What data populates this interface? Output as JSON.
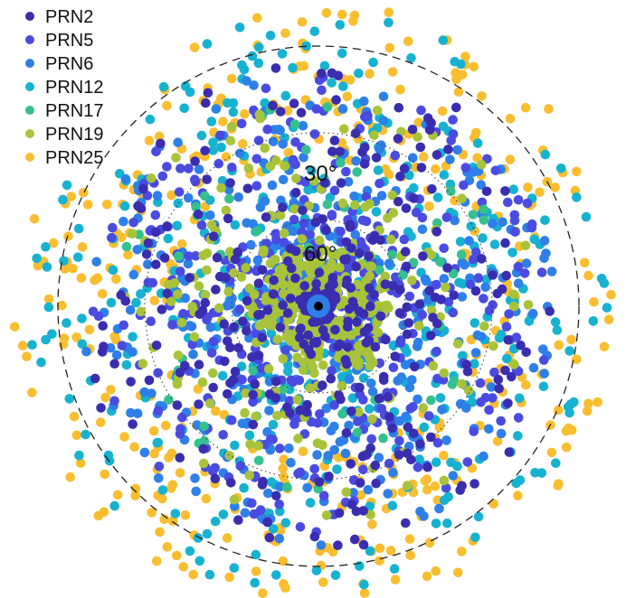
{
  "chart_data": {
    "type": "scatter",
    "projection": "polar-skyplot",
    "title": "",
    "xlabel": "",
    "ylabel": "",
    "elevation_rings": [
      {
        "elevation_deg": 0,
        "style": "dashed",
        "label": ""
      },
      {
        "elevation_deg": 30,
        "style": "dotted",
        "label": "30°"
      },
      {
        "elevation_deg": 60,
        "style": "dotted",
        "label": "60°"
      }
    ],
    "zenith_marker": {
      "azimuth_deg": 0,
      "elevation_deg": 90,
      "color": "#000000"
    },
    "legend": {
      "position": "top-left"
    },
    "series": [
      {
        "name": "PRN2",
        "color": "#3A2DB0",
        "track": {
          "elevation_range_deg": [
            5,
            90
          ],
          "note_count": 360
        }
      },
      {
        "name": "PRN5",
        "color": "#4A4BE0",
        "track": {
          "elevation_range_deg": [
            10,
            88
          ],
          "note_count": 420
        }
      },
      {
        "name": "PRN6",
        "color": "#2E7FE8",
        "track": {
          "elevation_range_deg": [
            8,
            82
          ],
          "note_count": 420
        }
      },
      {
        "name": "PRN12",
        "color": "#16B2D0",
        "track": {
          "elevation_range_deg": [
            -12,
            78
          ],
          "note_count": 420
        }
      },
      {
        "name": "PRN17",
        "color": "#35C08E",
        "track": {
          "elevation_range_deg": [
            20,
            70
          ],
          "note_count": 60
        }
      },
      {
        "name": "PRN19",
        "color": "#A8C33A",
        "track": {
          "elevation_range_deg": [
            15,
            85
          ],
          "note_count": 420
        }
      },
      {
        "name": "PRN25",
        "color": "#F9BE30",
        "track": {
          "elevation_range_deg": [
            -15,
            40
          ],
          "note_count": 380
        }
      }
    ]
  }
}
